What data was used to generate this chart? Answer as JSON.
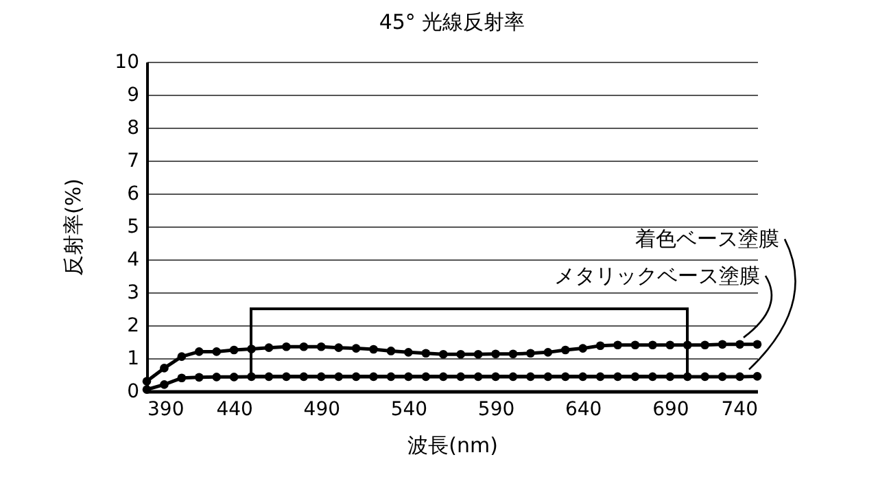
{
  "chart_data": {
    "type": "line",
    "title": "45° 光線反射率",
    "xlabel": "波長(nm)",
    "ylabel": "反射率(%)",
    "x": [
      390,
      400,
      410,
      420,
      430,
      440,
      450,
      460,
      470,
      480,
      490,
      500,
      510,
      520,
      530,
      540,
      550,
      560,
      570,
      580,
      590,
      600,
      610,
      620,
      630,
      640,
      650,
      660,
      670,
      680,
      690,
      700,
      710,
      720,
      730,
      740
    ],
    "series": [
      {
        "name": "メタリックベース塗膜",
        "color": "#000000",
        "values": [
          0.3,
          0.7,
          1.05,
          1.2,
          1.2,
          1.25,
          1.28,
          1.32,
          1.35,
          1.35,
          1.35,
          1.32,
          1.3,
          1.27,
          1.22,
          1.18,
          1.15,
          1.12,
          1.12,
          1.12,
          1.13,
          1.13,
          1.15,
          1.18,
          1.25,
          1.3,
          1.38,
          1.4,
          1.4,
          1.4,
          1.4,
          1.4,
          1.4,
          1.42,
          1.42,
          1.42
        ]
      },
      {
        "name": "着色ベース塗膜",
        "color": "#000000",
        "values": [
          0.05,
          0.2,
          0.4,
          0.42,
          0.43,
          0.43,
          0.44,
          0.44,
          0.44,
          0.44,
          0.44,
          0.44,
          0.44,
          0.44,
          0.44,
          0.44,
          0.44,
          0.44,
          0.44,
          0.44,
          0.44,
          0.44,
          0.44,
          0.44,
          0.44,
          0.44,
          0.44,
          0.44,
          0.44,
          0.44,
          0.44,
          0.44,
          0.44,
          0.44,
          0.44,
          0.45
        ]
      }
    ],
    "xlim": [
      390,
      740
    ],
    "xticks": [
      390,
      440,
      490,
      540,
      590,
      640,
      690,
      740
    ],
    "ylim": [
      0,
      10
    ],
    "yticks": [
      0,
      1,
      2,
      3,
      4,
      5,
      6,
      7,
      8,
      9,
      10
    ],
    "grid": "y",
    "legend": false,
    "marker": "circle",
    "line_style": "solid"
  }
}
